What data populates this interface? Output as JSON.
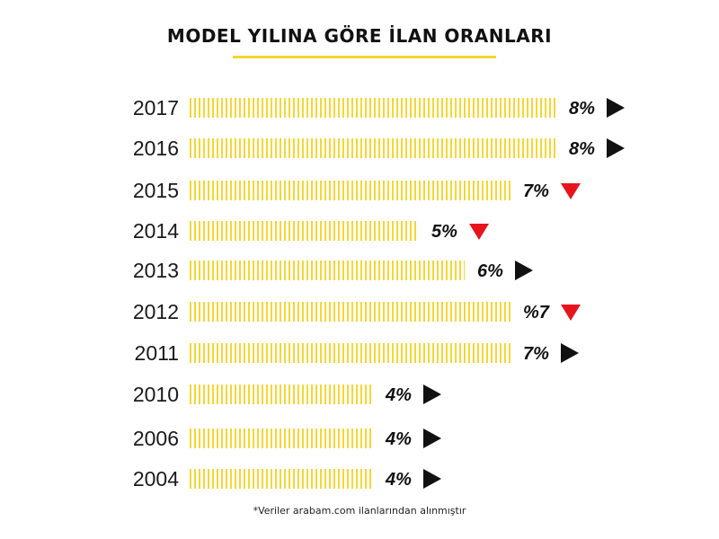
{
  "title": "MODEL YILINA GÖRE İLAN ORANLARI",
  "footnote": "*Veriler arabam.com ilanlarından alınmıştır",
  "colors": {
    "bar": "#f5d634",
    "trend_up": "#111111",
    "trend_down": "#e8141c",
    "text": "#111111"
  },
  "chart_data": {
    "type": "bar",
    "orientation": "horizontal",
    "title": "MODEL YILINA GÖRE İLAN ORANLARI",
    "unit": "%",
    "categories": [
      "2017",
      "2016",
      "2015",
      "2014",
      "2013",
      "2012",
      "2011",
      "2010",
      "2006",
      "2004"
    ],
    "values": [
      8,
      8,
      7,
      5,
      6,
      7,
      7,
      4,
      4,
      4
    ],
    "labels": [
      "8%",
      "8%",
      "7%",
      "5%",
      "6%",
      "%7",
      "7%",
      "4%",
      "4%",
      "4%"
    ],
    "trend_icons": [
      "triangle-right-icon",
      "triangle-right-icon",
      "triangle-down-icon",
      "triangle-down-icon",
      "triangle-right-icon",
      "triangle-down-icon",
      "triangle-right-icon",
      "triangle-right-icon",
      "triangle-right-icon",
      "triangle-right-icon"
    ],
    "grid": false,
    "legend": "none"
  }
}
